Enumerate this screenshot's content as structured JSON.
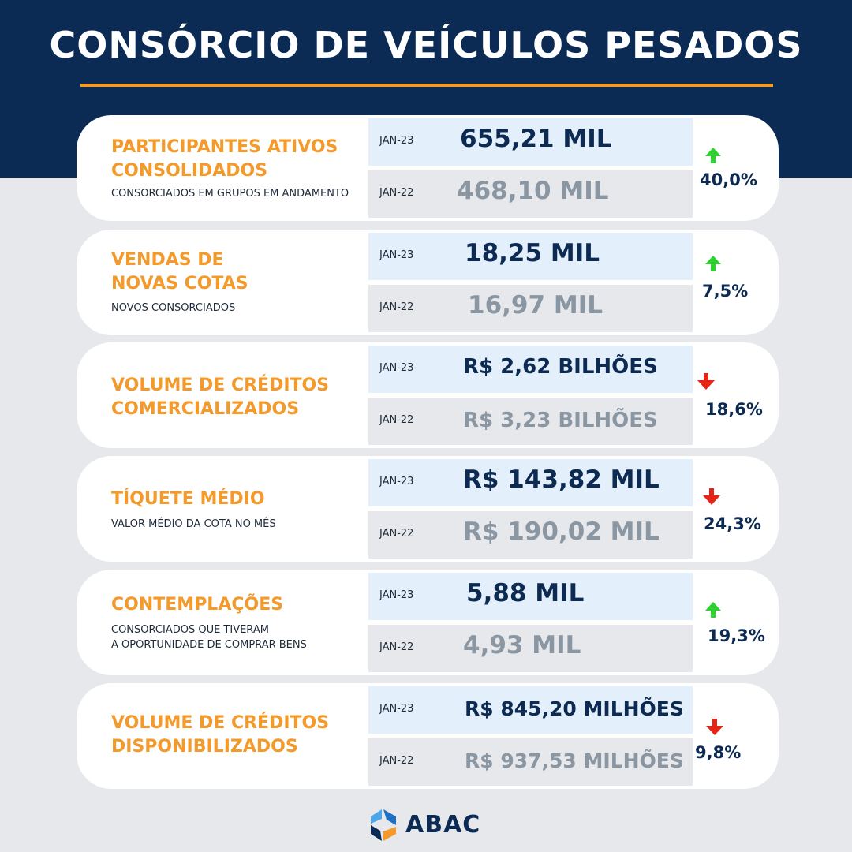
{
  "title": "CONSÓRCIO DE VEÍCULOS PESADOS",
  "colors": {
    "navy": "#0b2b55",
    "orange": "#f39a2a",
    "up": "#2ed12e",
    "down": "#e52417"
  },
  "cards": [
    {
      "title": "PARTICIPANTES ATIVOS\nCONSOLIDADOS",
      "subtitle": "CONSORCIADOS EM GRUPOS EM ANDAMENTO",
      "current_label": "JAN-23",
      "current_value": "655,21 MIL",
      "previous_label": "JAN-22",
      "previous_value": "468,10 MIL",
      "change_direction": "up",
      "change_icon": "arrow-up-icon",
      "change": "40,0%"
    },
    {
      "title": "VENDAS DE\nNOVAS COTAS",
      "subtitle": "NOVOS CONSORCIADOS",
      "current_label": "JAN-23",
      "current_value": "18,25 MIL",
      "previous_label": "JAN-22",
      "previous_value": "16,97 MIL",
      "change_direction": "up",
      "change_icon": "arrow-up-icon",
      "change": "7,5%"
    },
    {
      "title": "VOLUME DE CRÉDITOS\nCOMERCIALIZADOS",
      "subtitle": "",
      "current_label": "JAN-23",
      "current_value": "R$ 2,62 BILHÕES",
      "previous_label": "JAN-22",
      "previous_value": "R$ 3,23 BILHÕES",
      "change_direction": "down",
      "change_icon": "arrow-down-icon",
      "change": "18,6%"
    },
    {
      "title": "TÍQUETE MÉDIO",
      "subtitle": "VALOR MÉDIO DA COTA NO MÊS",
      "current_label": "JAN-23",
      "current_value": "R$ 143,82 MIL",
      "previous_label": "JAN-22",
      "previous_value": "R$ 190,02 MIL",
      "change_direction": "down",
      "change_icon": "arrow-down-icon",
      "change": "24,3%"
    },
    {
      "title": "CONTEMPLAÇÕES",
      "subtitle": "CONSORCIADOS QUE TIVERAM\nA OPORTUNIDADE DE COMPRAR BENS",
      "current_label": "JAN-23",
      "current_value": "5,88 MIL",
      "previous_label": "JAN-22",
      "previous_value": "4,93 MIL",
      "change_direction": "up",
      "change_icon": "arrow-up-icon",
      "change": "19,3%"
    },
    {
      "title": "VOLUME DE CRÉDITOS\nDISPONIBILIZADOS",
      "subtitle": "",
      "current_label": "JAN-23",
      "current_value": "R$ 845,20 MILHÕES",
      "previous_label": "JAN-22",
      "previous_value": "R$ 937,53 MILHÕES",
      "change_direction": "down",
      "change_icon": "arrow-down-icon",
      "change": "9,8%"
    }
  ],
  "logo": {
    "text": "ABAC",
    "icon": "abac-logo-icon"
  }
}
